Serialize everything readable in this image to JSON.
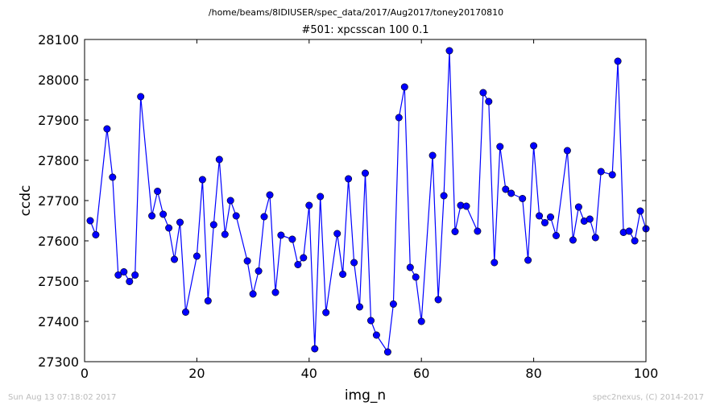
{
  "header": {
    "path": "/home/beams/8IDIUSER/spec_data/2017/Aug2017/toney20170810",
    "scan": "#501: xpcsscan 100 0.1"
  },
  "footer": {
    "timestamp": "Sun Aug 13 07:18:02 2017",
    "credit": "spec2nexus, (C) 2014-2017"
  },
  "chart_data": {
    "type": "line",
    "title": "#501: xpcsscan 100 0.1",
    "xlabel": "img_n",
    "ylabel": "ccdc",
    "xlim": [
      0,
      100
    ],
    "ylim": [
      27300,
      28100
    ],
    "xticks": [
      0,
      20,
      40,
      60,
      80,
      100
    ],
    "yticks": [
      27300,
      27400,
      27500,
      27600,
      27700,
      27800,
      27900,
      28000,
      28100
    ],
    "grid": false,
    "marker": "circle",
    "line_color": "#0000ff",
    "marker_color": "#0000ff",
    "x": [
      1,
      2,
      4,
      5,
      6,
      7,
      8,
      9,
      10,
      12,
      13,
      14,
      15,
      16,
      17,
      18,
      20,
      21,
      22,
      23,
      24,
      25,
      26,
      27,
      29,
      30,
      31,
      32,
      33,
      34,
      35,
      37,
      38,
      39,
      40,
      41,
      42,
      43,
      45,
      46,
      47,
      48,
      49,
      50,
      51,
      52,
      54,
      55,
      56,
      57,
      58,
      59,
      60,
      62,
      63,
      64,
      65,
      66,
      67,
      68,
      70,
      71,
      72,
      73,
      74,
      75,
      76,
      78,
      79,
      80,
      81,
      82,
      83,
      84,
      86,
      87,
      88,
      89,
      90,
      91,
      92,
      94,
      95,
      96,
      97,
      98,
      99,
      100
    ],
    "y": [
      27650,
      27615,
      27878,
      27758,
      27515,
      27523,
      27499,
      27515,
      27958,
      27662,
      27723,
      27666,
      27632,
      27554,
      27646,
      27423,
      27562,
      27752,
      27451,
      27640,
      27802,
      27616,
      27700,
      27662,
      27550,
      27468,
      27525,
      27660,
      27714,
      27472,
      27614,
      27604,
      27541,
      27558,
      27688,
      27332,
      27710,
      27422,
      27618,
      27517,
      27754,
      27546,
      27436,
      27768,
      27402,
      27366,
      27324,
      27443,
      27906,
      27982,
      27534,
      27510,
      27400,
      27812,
      27454,
      27712,
      28072,
      27623,
      27688,
      27686,
      27624,
      27968,
      27946,
      27546,
      27834,
      27728,
      27718,
      27705,
      27552,
      27836,
      27662,
      27645,
      27659,
      27613,
      27824,
      27602,
      27684,
      27649,
      27654,
      27608,
      27772,
      27764,
      28046,
      27621,
      27624,
      27600,
      27674,
      27630
    ]
  }
}
